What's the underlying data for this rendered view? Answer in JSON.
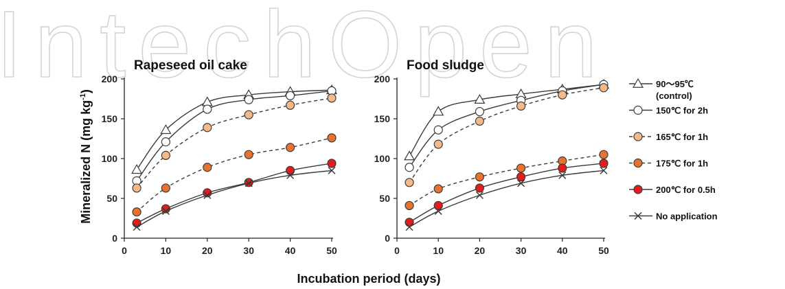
{
  "watermark": "IntechOpen",
  "colors": {
    "axis": "#222222",
    "line": "#3a3a3a",
    "white_marker": "#ffffff",
    "light_orange": "#f6b98a",
    "orange": "#e8732f",
    "red": "#e31d1d",
    "watermark": "#d3d3d3"
  },
  "shared": {
    "ylabel": "Mineralized N (mg kg-1)",
    "ylabel_main": "Mineralized N (mg kg",
    "ylabel_sup": "-1",
    "ylabel_close": ")",
    "xlabel": "Incubation period (days)"
  },
  "legend": [
    {
      "line1": "90～95℃",
      "line2": "(control)",
      "marker": "triangle",
      "fill": "white_marker",
      "dash": false
    },
    {
      "line1": "150℃ for 2h",
      "line2": "",
      "marker": "circle",
      "fill": "white_marker",
      "dash": false
    },
    {
      "line1": "165℃ for 1h",
      "line2": "",
      "marker": "circle",
      "fill": "light_orange",
      "dash": true
    },
    {
      "line1": "175℃ for 1h",
      "line2": "",
      "marker": "circle",
      "fill": "orange",
      "dash": true
    },
    {
      "line1": "200℃ for 0.5h",
      "line2": "",
      "marker": "circle",
      "fill": "red",
      "dash": false
    },
    {
      "line1": "No application",
      "line2": "",
      "marker": "cross",
      "fill": "none",
      "dash": false
    }
  ],
  "chart_data": [
    {
      "type": "line",
      "title": "Rapeseed oil cake",
      "xlabel": "Incubation period (days)",
      "ylabel": "Mineralized N (mg kg-1)",
      "x": [
        3,
        10,
        20,
        30,
        40,
        50
      ],
      "xlim": [
        0,
        50
      ],
      "ylim": [
        0,
        200
      ],
      "xticks": [
        0,
        10,
        20,
        30,
        40,
        50
      ],
      "yticks": [
        0,
        50,
        100,
        150,
        200
      ],
      "grid": false,
      "legend_position": "right",
      "series": [
        {
          "name": "90～95℃ (control)",
          "values": [
            86,
            136,
            171,
            180,
            184,
            186
          ]
        },
        {
          "name": "150℃ for 2h",
          "values": [
            72,
            121,
            162,
            174,
            179,
            185
          ]
        },
        {
          "name": "165℃ for 1h",
          "values": [
            63,
            104,
            139,
            155,
            167,
            176
          ]
        },
        {
          "name": "175℃ for 1h",
          "values": [
            33,
            63,
            89,
            105,
            114,
            126
          ]
        },
        {
          "name": "200℃ for 0.5h",
          "values": [
            19,
            37,
            57,
            70,
            85,
            94
          ]
        },
        {
          "name": "No application",
          "values": [
            14,
            34,
            54,
            69,
            79,
            85
          ]
        }
      ]
    },
    {
      "type": "line",
      "title": "Food sludge",
      "xlabel": "Incubation period (days)",
      "ylabel": "Mineralized N (mg kg-1)",
      "x": [
        3,
        10,
        20,
        30,
        40,
        50
      ],
      "xlim": [
        0,
        50
      ],
      "ylim": [
        0,
        200
      ],
      "xticks": [
        0,
        10,
        20,
        30,
        40,
        50
      ],
      "yticks": [
        0,
        50,
        100,
        150,
        200
      ],
      "grid": false,
      "legend_position": "right",
      "series": [
        {
          "name": "90～95℃ (control)",
          "values": [
            103,
            159,
            174,
            181,
            187,
            193
          ]
        },
        {
          "name": "150℃ for 2h",
          "values": [
            89,
            136,
            159,
            173,
            185,
            193
          ]
        },
        {
          "name": "165℃ for 1h",
          "values": [
            70,
            118,
            147,
            166,
            180,
            189
          ]
        },
        {
          "name": "175℃ for 1h",
          "values": [
            41,
            62,
            77,
            88,
            97,
            105
          ]
        },
        {
          "name": "200℃ for 0.5h",
          "values": [
            20,
            41,
            63,
            77,
            88,
            94
          ]
        },
        {
          "name": "No application",
          "values": [
            14,
            34,
            54,
            69,
            79,
            85
          ]
        }
      ]
    }
  ]
}
